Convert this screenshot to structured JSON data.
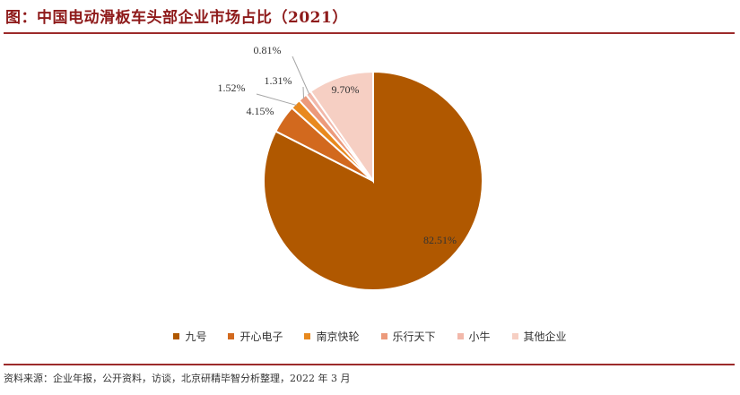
{
  "figure": {
    "title": "图：中国电动滑板车头部企业市场占比（2021）",
    "source": "资料来源：企业年报，公开资料，访谈，北京研精毕智分析整理，2022 年 3 月"
  },
  "chart_data": {
    "type": "pie",
    "title": "图：中国电动滑板车头部企业市场占比（2021）",
    "labels": [
      "九号",
      "开心电子",
      "南京快轮",
      "乐行天下",
      "小牛",
      "其他企业"
    ],
    "values": [
      82.51,
      4.15,
      1.52,
      1.31,
      0.81,
      9.7
    ],
    "data_labels": [
      "82.51%",
      "4.15%",
      "1.52%",
      "1.31%",
      "0.81%",
      "9.70%"
    ],
    "colors": [
      "#b05800",
      "#d2691e",
      "#e8891e",
      "#ec9a7b",
      "#f2b8aa",
      "#f6cfc3"
    ],
    "start_angle_deg": 0,
    "direction": "clockwise",
    "legend_position": "bottom"
  }
}
